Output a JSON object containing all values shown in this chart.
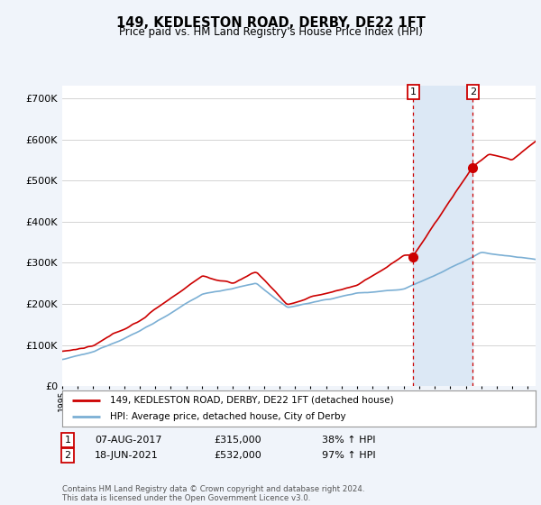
{
  "title": "149, KEDLESTON ROAD, DERBY, DE22 1FT",
  "subtitle": "Price paid vs. HM Land Registry's House Price Index (HPI)",
  "property_label": "149, KEDLESTON ROAD, DERBY, DE22 1FT (detached house)",
  "hpi_label": "HPI: Average price, detached house, City of Derby",
  "transaction1_date": "07-AUG-2017",
  "transaction1_price": 315000,
  "transaction1_hpi": "38% ↑ HPI",
  "transaction2_date": "18-JUN-2021",
  "transaction2_price": 532000,
  "transaction2_hpi": "97% ↑ HPI",
  "footnote": "Contains HM Land Registry data © Crown copyright and database right 2024.\nThis data is licensed under the Open Government Licence v3.0.",
  "ylim": [
    0,
    730000
  ],
  "yticks": [
    0,
    100000,
    200000,
    300000,
    400000,
    500000,
    600000,
    700000
  ],
  "property_color": "#cc0000",
  "hpi_color": "#7bafd4",
  "shade_color": "#dce8f5",
  "transaction_marker_color": "#cc0000",
  "vline_color": "#cc0000",
  "background_color": "#f0f4fa",
  "plot_bg_color": "#ffffff",
  "t1_year": 2017.625,
  "t2_year": 2021.458
}
